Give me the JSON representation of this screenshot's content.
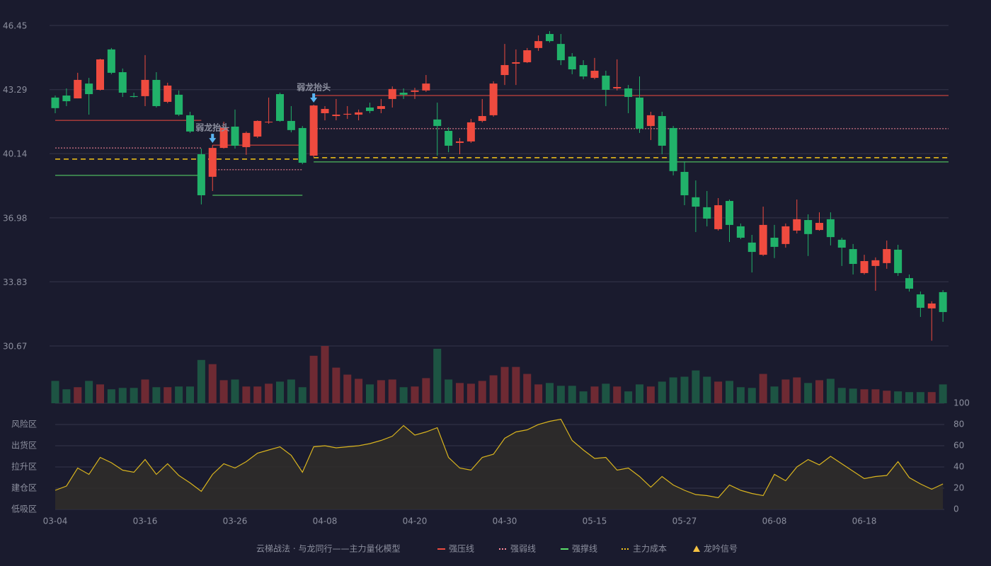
{
  "chart_data": {
    "type": "candlestick",
    "categories": [
      "03-04",
      null,
      null,
      null,
      null,
      null,
      null,
      null,
      "03-16",
      null,
      null,
      null,
      null,
      null,
      null,
      null,
      "03-26",
      null,
      null,
      null,
      null,
      null,
      null,
      null,
      "04-08",
      null,
      null,
      null,
      null,
      null,
      null,
      null,
      "04-20",
      null,
      null,
      null,
      null,
      null,
      null,
      null,
      "04-30",
      null,
      null,
      null,
      null,
      null,
      null,
      null,
      "05-15",
      null,
      null,
      null,
      null,
      null,
      null,
      null,
      "05-27",
      null,
      null,
      null,
      null,
      null,
      null,
      null,
      "06-08",
      null,
      null,
      null,
      null,
      null,
      null,
      null,
      "06-18",
      null,
      null,
      null,
      null,
      null,
      null,
      null
    ],
    "open": [
      42.9,
      43.0,
      42.86,
      43.59,
      43.28,
      45.27,
      44.15,
      42.97,
      42.97,
      43.77,
      42.69,
      43.04,
      42.03,
      40.11,
      39.0,
      40.42,
      41.47,
      40.46,
      40.98,
      41.68,
      43.07,
      41.75,
      41.4,
      40.04,
      42.13,
      41.99,
      42.06,
      42.06,
      42.41,
      42.34,
      42.83,
      43.14,
      43.18,
      43.25,
      41.82,
      41.26,
      40.67,
      40.74,
      41.75,
      42.03,
      44.01,
      44.57,
      44.64,
      45.34,
      46.03,
      45.54,
      44.92,
      44.5,
      43.87,
      43.98,
      43.35,
      43.35,
      42.9,
      41.5,
      41.99,
      41.4,
      39.24,
      37.99,
      37.5,
      36.42,
      37.81,
      36.56,
      35.76,
      35.16,
      36.0,
      35.69,
      36.35,
      36.87,
      36.38,
      36.91,
      35.9,
      35.44,
      34.26,
      34.61,
      34.75,
      35.41,
      34.01,
      33.21,
      32.52,
      33.32
    ],
    "close": [
      42.38,
      42.72,
      43.77,
      43.07,
      44.78,
      44.12,
      43.14,
      42.93,
      43.77,
      42.48,
      43.49,
      42.06,
      41.23,
      38.09,
      40.42,
      41.43,
      40.53,
      41.16,
      41.75,
      41.71,
      41.75,
      41.3,
      39.69,
      42.51,
      42.34,
      42.06,
      42.1,
      42.17,
      42.24,
      42.48,
      43.32,
      43.04,
      43.25,
      43.59,
      41.5,
      40.53,
      40.74,
      41.68,
      41.99,
      43.59,
      44.5,
      44.64,
      45.23,
      45.68,
      45.68,
      44.74,
      44.29,
      43.94,
      44.22,
      43.28,
      43.42,
      42.93,
      41.37,
      42.03,
      40.53,
      39.28,
      38.09,
      37.53,
      36.94,
      37.6,
      36.63,
      36.0,
      35.3,
      36.63,
      35.55,
      36.56,
      36.91,
      36.18,
      36.73,
      36.03,
      35.51,
      34.71,
      34.85,
      34.89,
      35.44,
      34.26,
      33.49,
      32.55,
      32.76,
      32.34
    ],
    "high": [
      43.0,
      43.35,
      44.12,
      43.87,
      44.81,
      45.34,
      44.33,
      43.14,
      44.99,
      44.15,
      43.63,
      43.25,
      42.2,
      40.39,
      40.56,
      41.71,
      42.31,
      41.23,
      41.78,
      42.9,
      43.14,
      42.48,
      41.5,
      42.55,
      42.48,
      42.83,
      42.48,
      42.31,
      42.65,
      42.83,
      43.45,
      43.35,
      43.38,
      44.01,
      42.65,
      41.43,
      40.91,
      41.85,
      42.83,
      43.7,
      45.54,
      45.27,
      45.34,
      45.96,
      46.17,
      46.03,
      45.09,
      44.74,
      44.85,
      44.22,
      44.78,
      43.52,
      43.94,
      42.2,
      42.2,
      41.5,
      39.76,
      38.82,
      38.3,
      37.95,
      37.88,
      36.7,
      36.14,
      37.53,
      36.63,
      36.7,
      37.88,
      37.15,
      37.25,
      37.25,
      36.0,
      35.69,
      35.16,
      35.03,
      35.86,
      35.65,
      34.19,
      33.35,
      32.87,
      33.42
    ],
    "low": [
      42.13,
      42.48,
      42.86,
      42.06,
      43.25,
      44.05,
      42.93,
      42.9,
      42.48,
      42.41,
      42.62,
      41.99,
      41.16,
      37.64,
      38.3,
      40.39,
      40.39,
      40.08,
      40.91,
      41.61,
      41.71,
      41.19,
      39.62,
      39.97,
      41.78,
      41.78,
      41.85,
      41.78,
      42.13,
      42.13,
      42.41,
      42.83,
      42.83,
      43.18,
      40.04,
      40.21,
      40.11,
      40.67,
      41.68,
      41.96,
      43.52,
      43.52,
      44.6,
      45.2,
      45.61,
      44.5,
      44.05,
      43.8,
      43.8,
      42.48,
      43.25,
      42.13,
      41.16,
      40.81,
      40.11,
      39.07,
      37.6,
      36.28,
      36.56,
      36.35,
      35.79,
      35.93,
      34.29,
      35.1,
      35.0,
      35.51,
      36.21,
      35.1,
      36.35,
      35.62,
      34.61,
      34.19,
      34.19,
      33.39,
      34.47,
      34.12,
      33.35,
      32.1,
      30.93,
      31.86
    ],
    "ylim": [
      30.67,
      46.45
    ],
    "yticks": [
      30.67,
      33.83,
      36.98,
      40.14,
      43.29,
      46.45
    ],
    "grid": true,
    "up_color": "#ef4b3f",
    "down_color": "#21b26a",
    "volume": [
      32,
      20,
      23,
      32,
      27,
      20,
      22,
      22,
      34,
      23,
      23,
      24,
      24,
      62,
      56,
      33,
      34,
      24,
      24,
      28,
      31,
      34,
      23,
      68,
      82,
      51,
      41,
      35,
      27,
      33,
      34,
      23,
      24,
      36,
      78,
      34,
      29,
      28,
      32,
      40,
      52,
      52,
      42,
      27,
      29,
      25,
      25,
      17,
      24,
      28,
      24,
      17,
      27,
      24,
      31,
      37,
      38,
      47,
      38,
      31,
      32,
      23,
      22,
      42,
      24,
      34,
      37,
      29,
      33,
      35,
      22,
      21,
      20,
      20,
      18,
      17,
      16,
      16,
      16,
      27
    ],
    "volume_up_color": "#6e2a33",
    "volume_down_color": "#1d5443",
    "indicator": {
      "values": [
        18,
        22,
        39,
        33,
        49,
        44,
        37,
        35,
        47,
        33,
        43,
        32,
        25,
        17,
        33,
        43,
        39,
        45,
        53,
        56,
        59,
        51,
        35,
        59,
        60,
        58,
        59,
        60,
        62,
        65,
        69,
        79,
        70,
        73,
        77,
        49,
        39,
        37,
        49,
        52,
        67,
        73,
        75,
        80,
        83,
        85,
        65,
        56,
        48,
        49,
        37,
        39,
        31,
        21,
        31,
        23,
        18,
        14,
        13,
        11,
        23,
        18,
        15,
        13,
        33,
        27,
        40,
        47,
        42,
        50,
        43,
        36,
        29,
        31,
        32,
        45,
        30,
        24,
        19,
        24
      ],
      "ylim": [
        0,
        100
      ],
      "yticks": [
        0,
        20,
        40,
        60,
        80,
        100
      ],
      "ytick_colors": [
        "#ef4b3f",
        "#f5a623",
        "#4b9cf5",
        "#e040e0",
        "#f5a623",
        "#3fd65a"
      ],
      "color": "#d9b41e",
      "fill": "#2f2c2a",
      "zones": [
        {
          "label": "风险区",
          "value": 80,
          "color": "#f5a623"
        },
        {
          "label": "出货区",
          "value": 60,
          "color": "#e040e0"
        },
        {
          "label": "拉升区",
          "value": 40,
          "color": "#4b9cf5"
        },
        {
          "label": "建仓区",
          "value": 20,
          "color": "#ef6a4a"
        },
        {
          "label": "低吸区",
          "value": 0,
          "color": "#ef4b3f"
        }
      ]
    },
    "legend": {
      "title": "云梯战法 · 与龙同行——主力量化模型",
      "title_color": "#e8c87a",
      "items": [
        {
          "key": "pressure",
          "name": "强压线",
          "color": "#ef4b3f",
          "style": "solid"
        },
        {
          "key": "weak",
          "name": "强弱线",
          "color": "#ff8a9a",
          "style": "dashed"
        },
        {
          "key": "support",
          "name": "强撑线",
          "color": "#5be06a",
          "style": "solid"
        },
        {
          "key": "cost",
          "name": "主力成本",
          "color": "#f5c518",
          "style": "dashed"
        },
        {
          "key": "signal",
          "name": "龙吟信号",
          "color": "#f5c242",
          "style": "triangle"
        }
      ]
    },
    "levels": [
      {
        "key": "pressure",
        "from": 0,
        "to": 13,
        "value": 41.78
      },
      {
        "key": "weak",
        "from": 0,
        "to": 13,
        "value": 40.42
      },
      {
        "key": "cost",
        "from": 0,
        "to": 22,
        "value": 39.87
      },
      {
        "key": "support",
        "from": 0,
        "to": 13,
        "value": 39.07
      },
      {
        "key": "pressure",
        "from": 14,
        "to": 22,
        "value": 40.56
      },
      {
        "key": "weak",
        "from": 14,
        "to": 22,
        "value": 39.35
      },
      {
        "key": "support",
        "from": 14,
        "to": 22,
        "value": 38.09
      },
      {
        "key": "pressure",
        "from": 23,
        "to": 79,
        "value": 43.0
      },
      {
        "key": "weak",
        "from": 23,
        "to": 79,
        "value": 41.37
      },
      {
        "key": "cost",
        "from": 23,
        "to": 79,
        "value": 39.94
      },
      {
        "key": "support",
        "from": 23,
        "to": 79,
        "value": 39.73
      }
    ],
    "annotations": [
      {
        "text": "弱龙抬头",
        "index": 14,
        "color": "#5ab4f0"
      },
      {
        "text": "弱龙抬头",
        "index": 23,
        "color": "#5ab4f0"
      }
    ]
  }
}
